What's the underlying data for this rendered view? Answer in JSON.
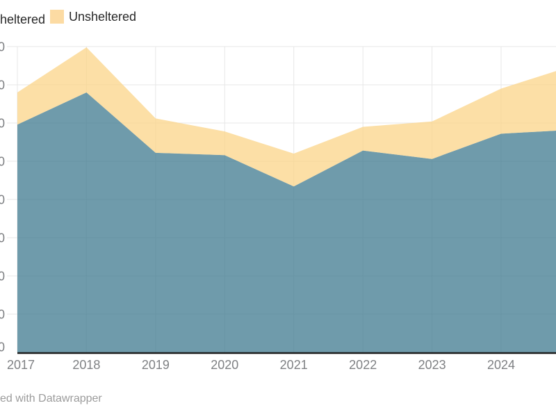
{
  "legend": {
    "items": [
      {
        "id": "sheltered",
        "label": "heltered",
        "full_label": "Sheltered",
        "color": "#6f9bab",
        "swatch_cut_off": true
      },
      {
        "id": "unsheltered",
        "label": "Unsheltered",
        "full_label": "Unsheltered",
        "color": "#fcdba3",
        "swatch_cut_off": false
      }
    ]
  },
  "attribution": {
    "text": "ed with Datawrapper",
    "full_text": "Created with Datawrapper"
  },
  "colors": {
    "sheltered_area": "#6f9bab",
    "unsheltered_area": "#fcdfa6",
    "gridline": "#e7e7e7",
    "axis_line": "#1d1d1d",
    "tick_label": "#7e8083"
  },
  "chart_data": {
    "type": "area",
    "stacked": true,
    "title": "",
    "xlabel": "",
    "ylabel": "",
    "x": [
      2017,
      2018,
      2019,
      2020,
      2021,
      2022,
      2023,
      2024
    ],
    "x_labels": [
      "2017",
      "2018",
      "2019",
      "2020",
      "2021",
      "2022",
      "2023",
      "2024"
    ],
    "series": [
      {
        "name": "Sheltered",
        "color": "#6f9bab",
        "values": [
          2980,
          3400,
          2610,
          2580,
          2170,
          2640,
          2530,
          2860
        ],
        "edge_value": 2900
      },
      {
        "name": "Unsheltered",
        "color": "#fcdfa6",
        "values": [
          420,
          590,
          450,
          310,
          430,
          310,
          490,
          590
        ],
        "edge_value": 780
      }
    ],
    "totals": [
      3400,
      3990,
      3060,
      2890,
      2600,
      2950,
      3020,
      3450
    ],
    "ylim": [
      0,
      4000
    ],
    "ytick_step": 500,
    "ytick_fragment": "0",
    "grid": true,
    "legend_position": "top-left",
    "notes": "Chart is cropped: y-axis tick labels cut off at left edge (only trailing zeros visible); series continues past 2024 to the right edge; y values estimated from gridlines assuming 0-4,000 range"
  }
}
